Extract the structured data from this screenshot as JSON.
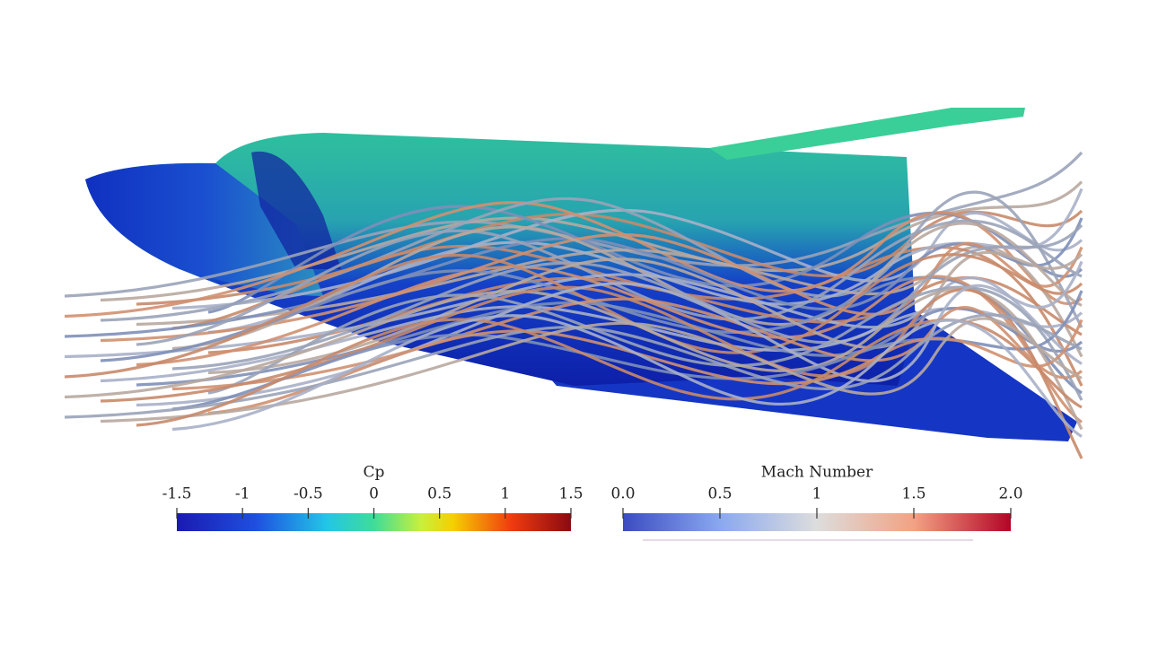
{
  "colorbars": [
    {
      "title": "Cp",
      "range": [
        -1.5,
        1.5
      ],
      "ticks": [
        -1.5,
        -1,
        -0.5,
        0,
        0.5,
        1,
        1.5
      ]
    },
    {
      "title": "Mach Number",
      "range": [
        0,
        2
      ],
      "ticks": [
        {
          "value": 0,
          "label": "0.0"
        },
        0.5,
        1,
        1.5,
        {
          "value": 2,
          "label": "2.0"
        }
      ]
    }
  ]
}
